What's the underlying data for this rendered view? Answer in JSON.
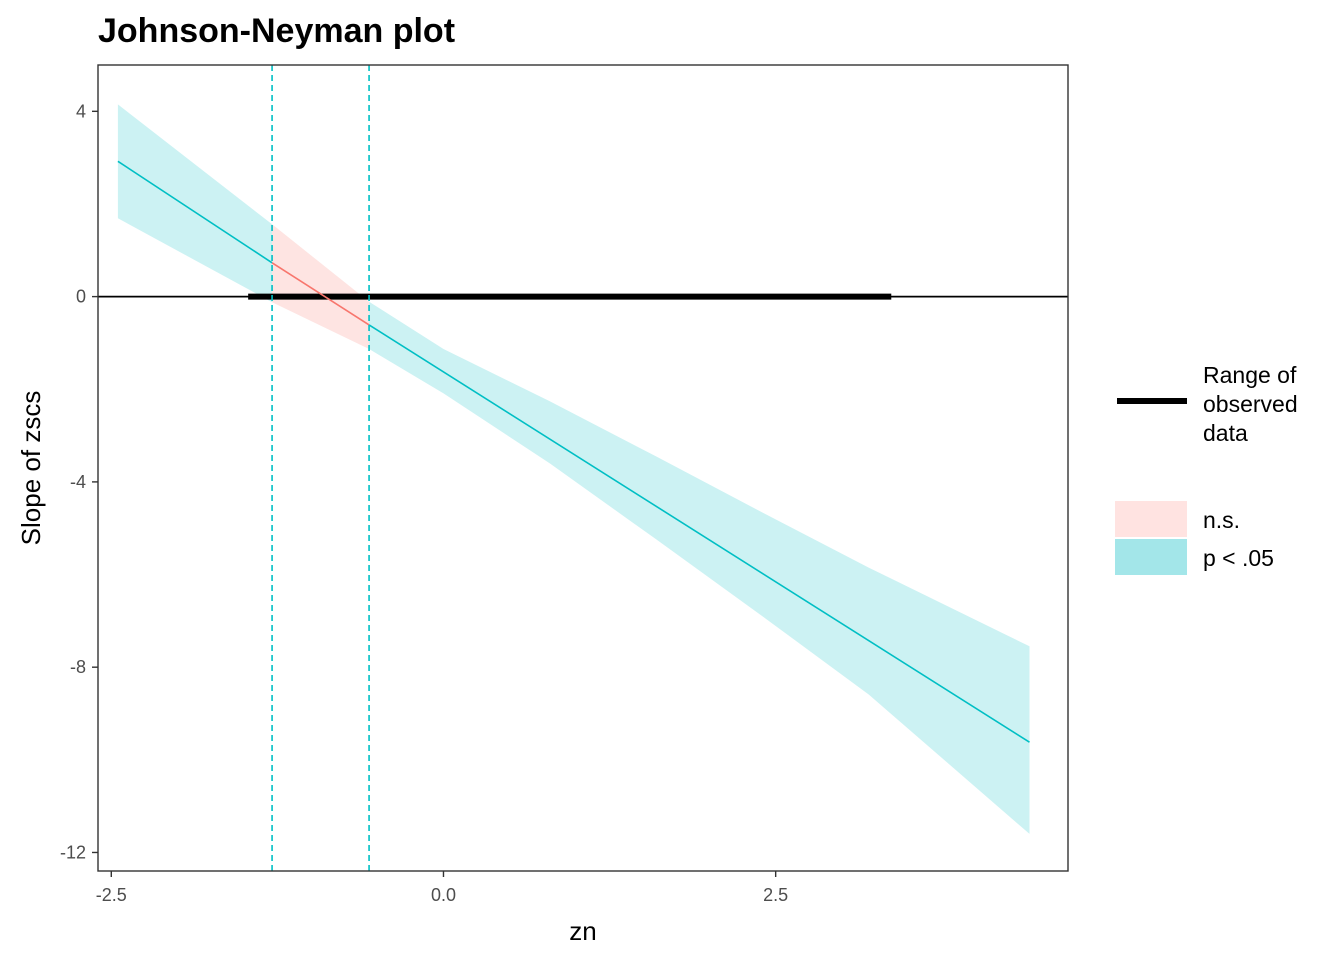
{
  "chart_data": {
    "type": "line",
    "title": "Johnson-Neyman plot",
    "xlabel": "zn",
    "ylabel": "Slope of zscs",
    "xlim": [
      -2.6,
      4.7
    ],
    "ylim": [
      -12.4,
      5.0
    ],
    "x_ticks": [
      {
        "value": -2.5,
        "label": "-2.5"
      },
      {
        "value": 0.0,
        "label": "0.0"
      },
      {
        "value": 2.5,
        "label": "2.5"
      }
    ],
    "y_ticks": [
      {
        "value": 4,
        "label": "4"
      },
      {
        "value": 0,
        "label": "0"
      },
      {
        "value": -4,
        "label": "-4"
      },
      {
        "value": -8,
        "label": "-8"
      },
      {
        "value": -12,
        "label": "-12"
      }
    ],
    "grid": false,
    "slope_line": {
      "x": [
        -2.45,
        -1.29,
        -0.56,
        4.41
      ],
      "y": [
        2.92,
        0.73,
        -0.61,
        -9.62
      ]
    },
    "confidence_band": {
      "x": [
        -2.45,
        -1.29,
        -0.56,
        0.0,
        0.8,
        1.6,
        2.4,
        3.2,
        4.41
      ],
      "upper": [
        4.15,
        1.56,
        -0.11,
        -1.13,
        -2.26,
        -3.45,
        -4.66,
        -5.85,
        -7.55
      ],
      "lower": [
        1.69,
        -0.12,
        -1.13,
        -2.09,
        -3.6,
        -5.24,
        -6.9,
        -8.59,
        -11.6
      ]
    },
    "jn_interval": {
      "bounds": [
        -1.29,
        -0.56
      ]
    },
    "observed_range": {
      "min": -1.47,
      "max": 3.37,
      "y": 0
    },
    "significance_colors": {
      "ns": "#F8766D",
      "sig": "#00BFC4"
    },
    "legend": {
      "position": "right",
      "range_label_lines": [
        "Range of",
        "observed",
        "data"
      ],
      "fill_entries": [
        {
          "label": "n.s.",
          "color": "#FFE3E1"
        },
        {
          "label": "p < .05",
          "color": "#A3E6E9"
        }
      ]
    }
  }
}
